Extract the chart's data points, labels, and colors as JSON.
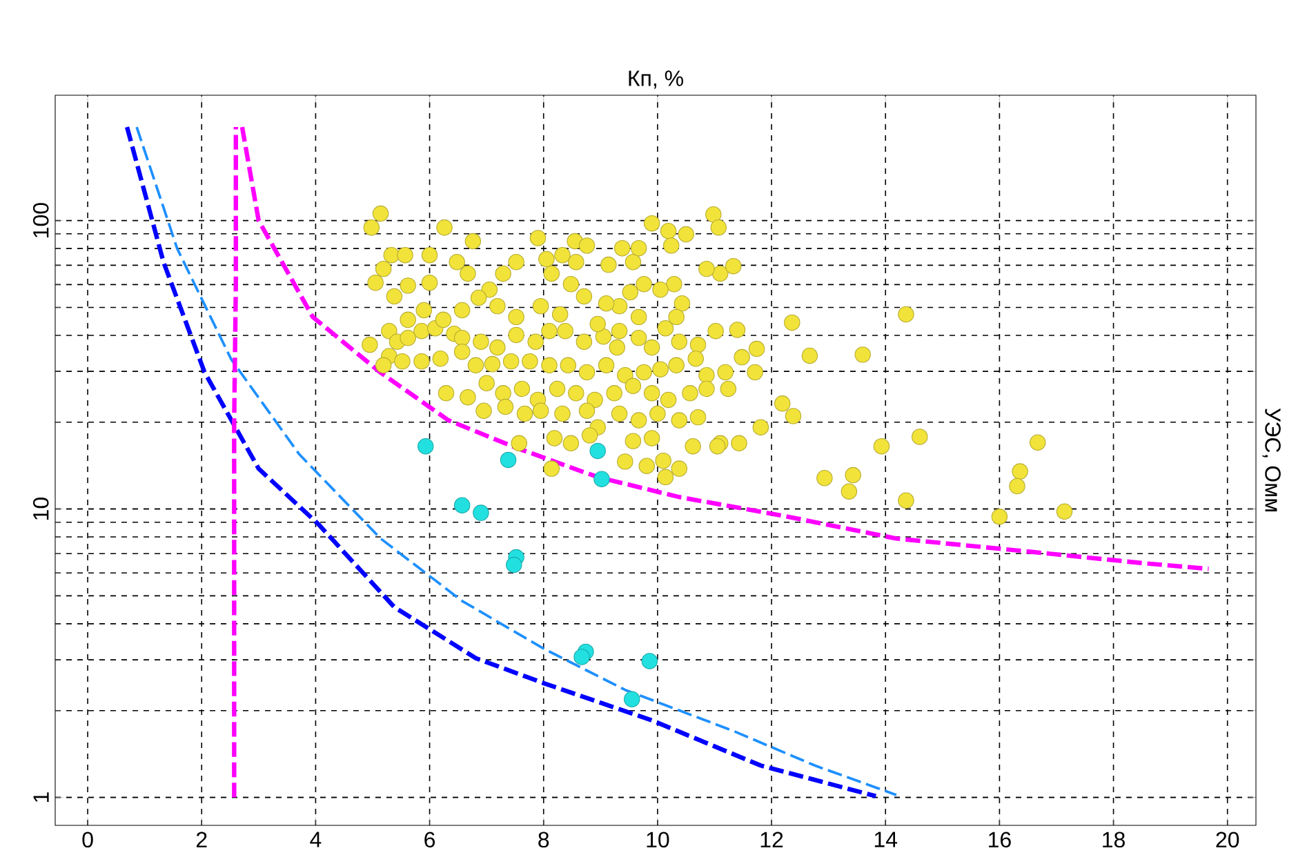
{
  "chart_data": {
    "type": "scatter",
    "xlabel": "Кп, %",
    "ylabel": "УЭС, Омм",
    "xlim": [
      -0.57,
      20.5
    ],
    "ylim": [
      0.8,
      272
    ],
    "xticks": [
      0,
      2,
      4,
      6,
      8,
      10,
      12,
      14,
      16,
      18,
      20
    ],
    "yticks": [
      1,
      10,
      100
    ],
    "log": "y",
    "grid": true,
    "marker": "circle",
    "series": [
      {
        "color": "#f2e33a",
        "x": [
          5.14,
          4.98,
          6.26,
          6.76,
          7.9,
          8.55,
          10.98,
          11.07,
          10.19,
          10.5,
          5.33,
          5.19,
          5.57,
          6.0,
          6.67,
          6.48,
          6.0,
          5.62,
          5.38,
          5.05,
          5.29,
          5.43,
          5.62,
          5.86,
          6.1,
          6.43,
          6.57,
          6.9,
          7.19,
          7.52,
          7.86,
          8.1,
          8.38,
          8.71,
          9.05,
          9.33,
          9.67,
          9.9,
          10.14,
          10.38,
          10.71,
          11.02,
          11.4,
          11.74,
          12.36,
          12.67,
          13.6,
          14.36,
          13.93,
          14.6,
          13.43,
          13.36,
          14.36,
          16.36,
          16.31,
          16.0,
          17.14,
          16.67,
          12.19,
          12.38,
          11.81,
          11.43,
          11.1,
          11.71,
          11.48,
          11.1,
          11.33,
          10.86,
          10.24,
          9.9,
          9.57,
          9.67,
          10.29,
          10.43,
          10.05,
          9.76,
          9.52,
          9.33,
          9.1,
          8.71,
          8.48,
          8.14,
          8.57,
          8.33,
          8.05,
          7.52,
          7.29,
          7.05,
          6.86,
          6.57,
          6.24,
          5.9,
          5.62,
          5.29,
          5.19,
          5.52,
          5.86,
          6.19,
          6.57,
          6.81,
          7.1,
          7.43,
          7.76,
          8.1,
          8.43,
          8.76,
          9.1,
          9.43,
          9.76,
          10.05,
          10.33,
          10.67,
          10.86,
          11.19,
          6.29,
          6.67,
          7.0,
          7.29,
          7.62,
          7.9,
          8.24,
          8.57,
          8.9,
          9.24,
          9.57,
          9.9,
          10.19,
          10.57,
          10.86,
          11.24,
          6.95,
          7.33,
          7.67,
          7.95,
          8.33,
          8.76,
          8.95,
          9.33,
          9.67,
          10.0,
          10.38,
          10.71,
          8.19,
          8.48,
          8.81,
          9.57,
          9.9,
          10.1,
          10.38,
          10.14,
          9.81,
          9.43,
          7.57,
          8.14,
          10.62,
          11.05,
          9.14,
          9.38,
          8.76,
          7.52,
          7.19,
          7.95,
          8.29,
          8.95,
          9.29,
          9.67,
          10.33,
          12.93,
          4.95
        ],
        "values": [
          105.7,
          94.6,
          94.6,
          84.8,
          87,
          84.8,
          105,
          94.6,
          92,
          89.6,
          75.9,
          68,
          75.9,
          75.9,
          65.5,
          71.8,
          60.9,
          59.5,
          54.6,
          60.9,
          41.4,
          38,
          39.2,
          41.4,
          42.3,
          40.5,
          39.2,
          38,
          36.3,
          40.1,
          38,
          41.4,
          41.4,
          38,
          39.6,
          41.4,
          39.2,
          36.3,
          42.3,
          38,
          37.1,
          41.4,
          41.8,
          35.9,
          44.3,
          34,
          34.3,
          47.3,
          16.5,
          17.8,
          13.1,
          11.5,
          10.7,
          13.5,
          12,
          9.4,
          9.8,
          17,
          23.2,
          21,
          19.2,
          16.9,
          16.9,
          29.8,
          33.6,
          65.5,
          69.5,
          68,
          81.9,
          97.8,
          71.8,
          80.2,
          60.2,
          51.6,
          57.6,
          60.2,
          56.4,
          50.5,
          51.6,
          54.6,
          60.2,
          65.5,
          71.8,
          75.9,
          73.5,
          71.8,
          65.5,
          57.6,
          54,
          48.9,
          45.3,
          48.9,
          45.3,
          33.9,
          31.5,
          32.5,
          32.5,
          33.2,
          35.1,
          31.5,
          31.8,
          32.5,
          32.5,
          31.5,
          31.5,
          29.8,
          31.5,
          29.1,
          29.8,
          30.5,
          31.5,
          33.2,
          29.1,
          29.8,
          25.2,
          24.4,
          27.3,
          25.2,
          26.1,
          23.9,
          26.1,
          25.2,
          23.9,
          25.2,
          26.7,
          25.2,
          23.9,
          25.2,
          26.1,
          26.1,
          21.9,
          22.6,
          21.4,
          21.9,
          21.4,
          21.9,
          19.2,
          21.4,
          20.3,
          21.4,
          20.3,
          20.8,
          17.6,
          16.9,
          18,
          17.2,
          17.6,
          14.7,
          13.8,
          12.9,
          14.1,
          14.6,
          16.9,
          13.8,
          16.5,
          16.5,
          70.3,
          80.2,
          81.9,
          46.3,
          50.5,
          50.5,
          47.3,
          43.8,
          36.3,
          46.3,
          46.3,
          12.8,
          37.1
        ]
      },
      {
        "color": "#22e0e0",
        "x": [
          5.93,
          7.38,
          6.57,
          6.9,
          7.52,
          7.48,
          8.74,
          8.67,
          9.86,
          9.55,
          9.02,
          8.95
        ],
        "values": [
          16.5,
          14.8,
          10.3,
          9.7,
          6.8,
          6.4,
          3.2,
          3.07,
          2.97,
          2.19,
          12.7,
          15.9
        ]
      },
      {
        "type": "line",
        "color": "#0000ff",
        "line_style": "dashed",
        "marker": "none",
        "x": [
          0.69,
          1.33,
          2.05,
          3.0,
          4.05,
          5.38,
          6.81,
          8.0,
          9.9,
          11.81,
          13.83
        ],
        "values": [
          211,
          71.8,
          29.8,
          13.8,
          8.85,
          4.57,
          3.04,
          2.49,
          1.85,
          1.29,
          1.01
        ]
      },
      {
        "type": "line",
        "color": "#1e90ff",
        "line_style": "dashed",
        "marker": "none",
        "x": [
          0.86,
          1.57,
          2.52,
          3.71,
          5.14,
          6.57,
          8.0,
          9.43,
          11.33,
          12.76,
          14.19
        ],
        "values": [
          211,
          80,
          33,
          15.5,
          7.9,
          4.8,
          3.28,
          2.36,
          1.7,
          1.29,
          1.02
        ]
      },
      {
        "type": "line",
        "color": "#ff00ff",
        "line_style": "dashed",
        "marker": "none",
        "x": [
          2.57,
          2.57,
          2.6,
          2.6
        ],
        "values": [
          1,
          20,
          60,
          211
        ]
      },
      {
        "type": "line",
        "color": "#ff00ff",
        "line_style": "dashed",
        "marker": "none",
        "x": [
          2.71,
          3.0,
          3.95,
          5.14,
          6.33,
          7.52,
          8.95,
          10.38,
          12.29,
          14.19,
          16.57,
          18.48,
          19.67
        ],
        "values": [
          211,
          100,
          46.3,
          29.7,
          20.3,
          16.3,
          12.9,
          11.0,
          9.4,
          7.9,
          7.1,
          6.5,
          6.2
        ]
      }
    ]
  }
}
